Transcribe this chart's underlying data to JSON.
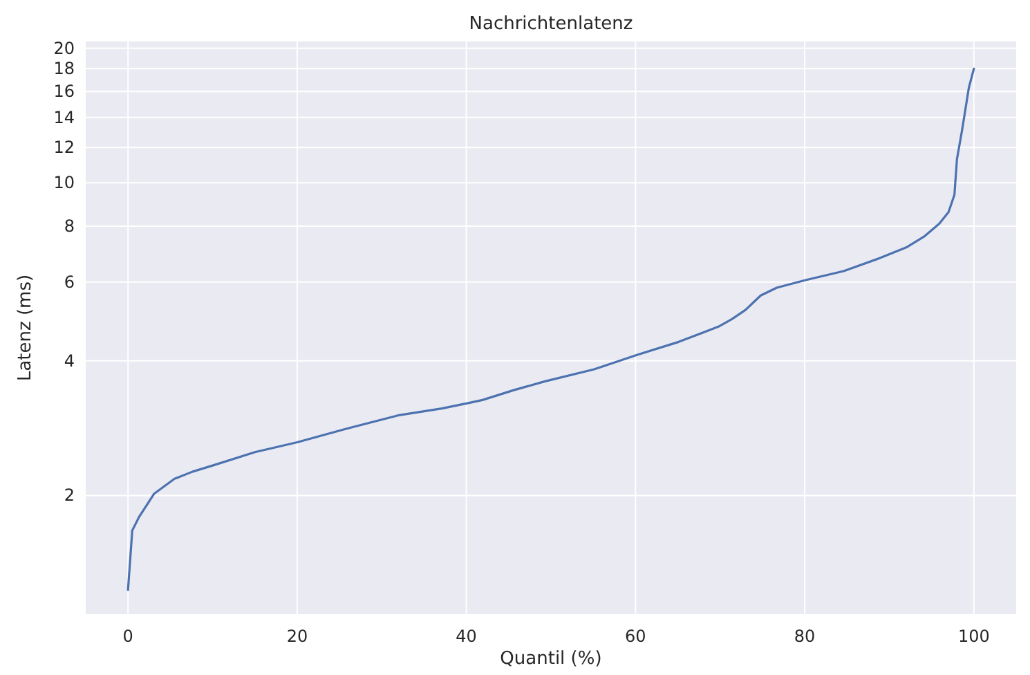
{
  "chart_data": {
    "type": "line",
    "title": "Nachrichtenlatenz",
    "xlabel": "Quantil (%)",
    "ylabel": "Latenz (ms)",
    "log": "y",
    "grid": true,
    "marker": "none",
    "line_style": "solid",
    "xlim": [
      -5,
      105
    ],
    "xticks": [
      0,
      20,
      40,
      60,
      80,
      100
    ],
    "ylim": [
      1.086,
      20.7
    ],
    "yticks": [
      2,
      4,
      6,
      8,
      10,
      12,
      14,
      16,
      18,
      20
    ],
    "x": [
      0,
      0.5,
      1.3,
      3.1,
      5.5,
      7.6,
      10.2,
      15,
      20,
      25.5,
      31.9,
      37.1,
      40.3,
      41.9,
      45.6,
      49.3,
      55.1,
      60.1,
      65.1,
      69.8,
      71.4,
      73,
      74.8,
      76.7,
      80.1,
      84.6,
      88.8,
      92,
      94.1,
      95.9,
      97,
      97.7,
      98,
      98.6,
      99.4,
      100
    ],
    "series": [
      {
        "color": "#4c72b0",
        "values": [
          1.23,
          1.67,
          1.79,
          2.02,
          2.18,
          2.26,
          2.34,
          2.5,
          2.63,
          2.81,
          3.02,
          3.13,
          3.22,
          3.27,
          3.44,
          3.6,
          3.83,
          4.12,
          4.41,
          4.77,
          4.96,
          5.2,
          5.6,
          5.83,
          6.06,
          6.35,
          6.78,
          7.17,
          7.58,
          8.1,
          8.6,
          9.4,
          11.3,
          13.1,
          16.3,
          18.0
        ]
      }
    ]
  }
}
